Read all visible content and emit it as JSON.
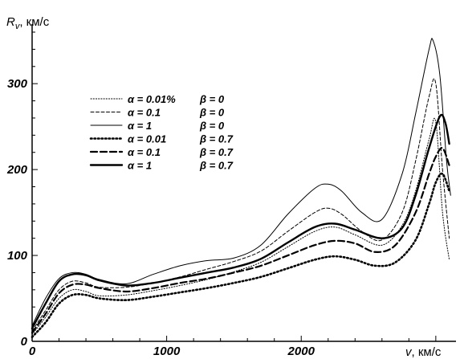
{
  "chart_data": {
    "type": "line",
    "title": "",
    "xlabel": "v, км/с",
    "ylabel": "R_v, км/с",
    "ylabel_parts": {
      "main": "R",
      "sub": "v",
      "unit": ", км/с"
    },
    "xlabel_parts": {
      "main": "v",
      "unit": ", км/с"
    },
    "xlim": [
      0,
      3150
    ],
    "ylim": [
      0,
      360
    ],
    "x_ticks": [
      0,
      1000,
      2000
    ],
    "y_ticks": [
      0,
      100,
      200,
      300
    ],
    "x_tick_labels": [
      "0",
      "1000",
      "2000"
    ],
    "y_tick_labels": [
      "0",
      "100",
      "200",
      "300"
    ],
    "grid": false,
    "legend_position": "upper-left",
    "series": [
      {
        "alpha_label": "α = 0.01%",
        "beta_label": "β = 0",
        "line_style": "dotted-thin",
        "x": [
          0,
          100,
          200,
          300,
          400,
          500,
          700,
          900,
          1100,
          1300,
          1500,
          1700,
          1900,
          2100,
          2250,
          2400,
          2600,
          2750,
          2850,
          2950,
          3000,
          3050,
          3100
        ],
        "y": [
          8,
          28,
          50,
          60,
          58,
          53,
          54,
          59,
          65,
          72,
          81,
          92,
          110,
          128,
          133,
          124,
          112,
          135,
          175,
          235,
          255,
          150,
          95
        ]
      },
      {
        "alpha_label": "α = 0.1",
        "beta_label": "β = 0",
        "line_style": "dashed-thin",
        "x": [
          0,
          100,
          200,
          300,
          400,
          500,
          700,
          900,
          1100,
          1300,
          1500,
          1700,
          1900,
          2100,
          2200,
          2300,
          2450,
          2600,
          2750,
          2850,
          2950,
          3000,
          3050,
          3100
        ],
        "y": [
          12,
          36,
          60,
          70,
          68,
          63,
          63,
          68,
          75,
          84,
          93,
          105,
          128,
          150,
          155,
          148,
          128,
          118,
          150,
          210,
          285,
          300,
          200,
          120
        ]
      },
      {
        "alpha_label": "α = 1",
        "beta_label": "β = 0",
        "line_style": "solid-thin",
        "x": [
          0,
          100,
          200,
          300,
          400,
          500,
          700,
          900,
          1100,
          1300,
          1500,
          1700,
          1900,
          2100,
          2200,
          2300,
          2450,
          2600,
          2750,
          2850,
          2950,
          2980,
          3030,
          3080,
          3110
        ],
        "y": [
          18,
          50,
          73,
          80,
          78,
          72,
          67,
          78,
          88,
          94,
          97,
          112,
          148,
          178,
          183,
          175,
          150,
          142,
          195,
          265,
          340,
          350,
          310,
          210,
          170
        ]
      },
      {
        "alpha_label": "α = 0.01",
        "beta_label": "β = 0.7",
        "line_style": "dotted-thick",
        "x": [
          0,
          100,
          200,
          300,
          400,
          500,
          700,
          900,
          1100,
          1300,
          1500,
          1700,
          1900,
          2100,
          2250,
          2400,
          2550,
          2700,
          2850,
          2950,
          3000,
          3050,
          3100
        ],
        "y": [
          5,
          22,
          44,
          54,
          54,
          50,
          48,
          52,
          57,
          62,
          68,
          75,
          85,
          95,
          99,
          95,
          88,
          92,
          118,
          160,
          185,
          195,
          175
        ]
      },
      {
        "alpha_label": "α = 0.1",
        "beta_label": "β = 0.7",
        "line_style": "dashed-thick",
        "x": [
          0,
          100,
          200,
          300,
          400,
          500,
          700,
          900,
          1100,
          1300,
          1500,
          1700,
          1900,
          2100,
          2250,
          2400,
          2550,
          2700,
          2850,
          2950,
          3000,
          3050,
          3100
        ],
        "y": [
          10,
          32,
          56,
          66,
          66,
          62,
          58,
          62,
          68,
          73,
          80,
          88,
          100,
          112,
          117,
          114,
          104,
          112,
          150,
          195,
          215,
          225,
          205
        ]
      },
      {
        "alpha_label": "α = 1",
        "beta_label": "β = 0.7",
        "line_style": "solid-thick",
        "x": [
          0,
          100,
          200,
          300,
          400,
          500,
          700,
          900,
          1100,
          1300,
          1500,
          1700,
          1900,
          2100,
          2250,
          2400,
          2600,
          2750,
          2850,
          2950,
          3030,
          3070,
          3100
        ],
        "y": [
          15,
          44,
          70,
          78,
          77,
          71,
          65,
          68,
          74,
          80,
          86,
          96,
          115,
          133,
          137,
          130,
          120,
          132,
          170,
          225,
          262,
          255,
          230
        ]
      }
    ]
  }
}
